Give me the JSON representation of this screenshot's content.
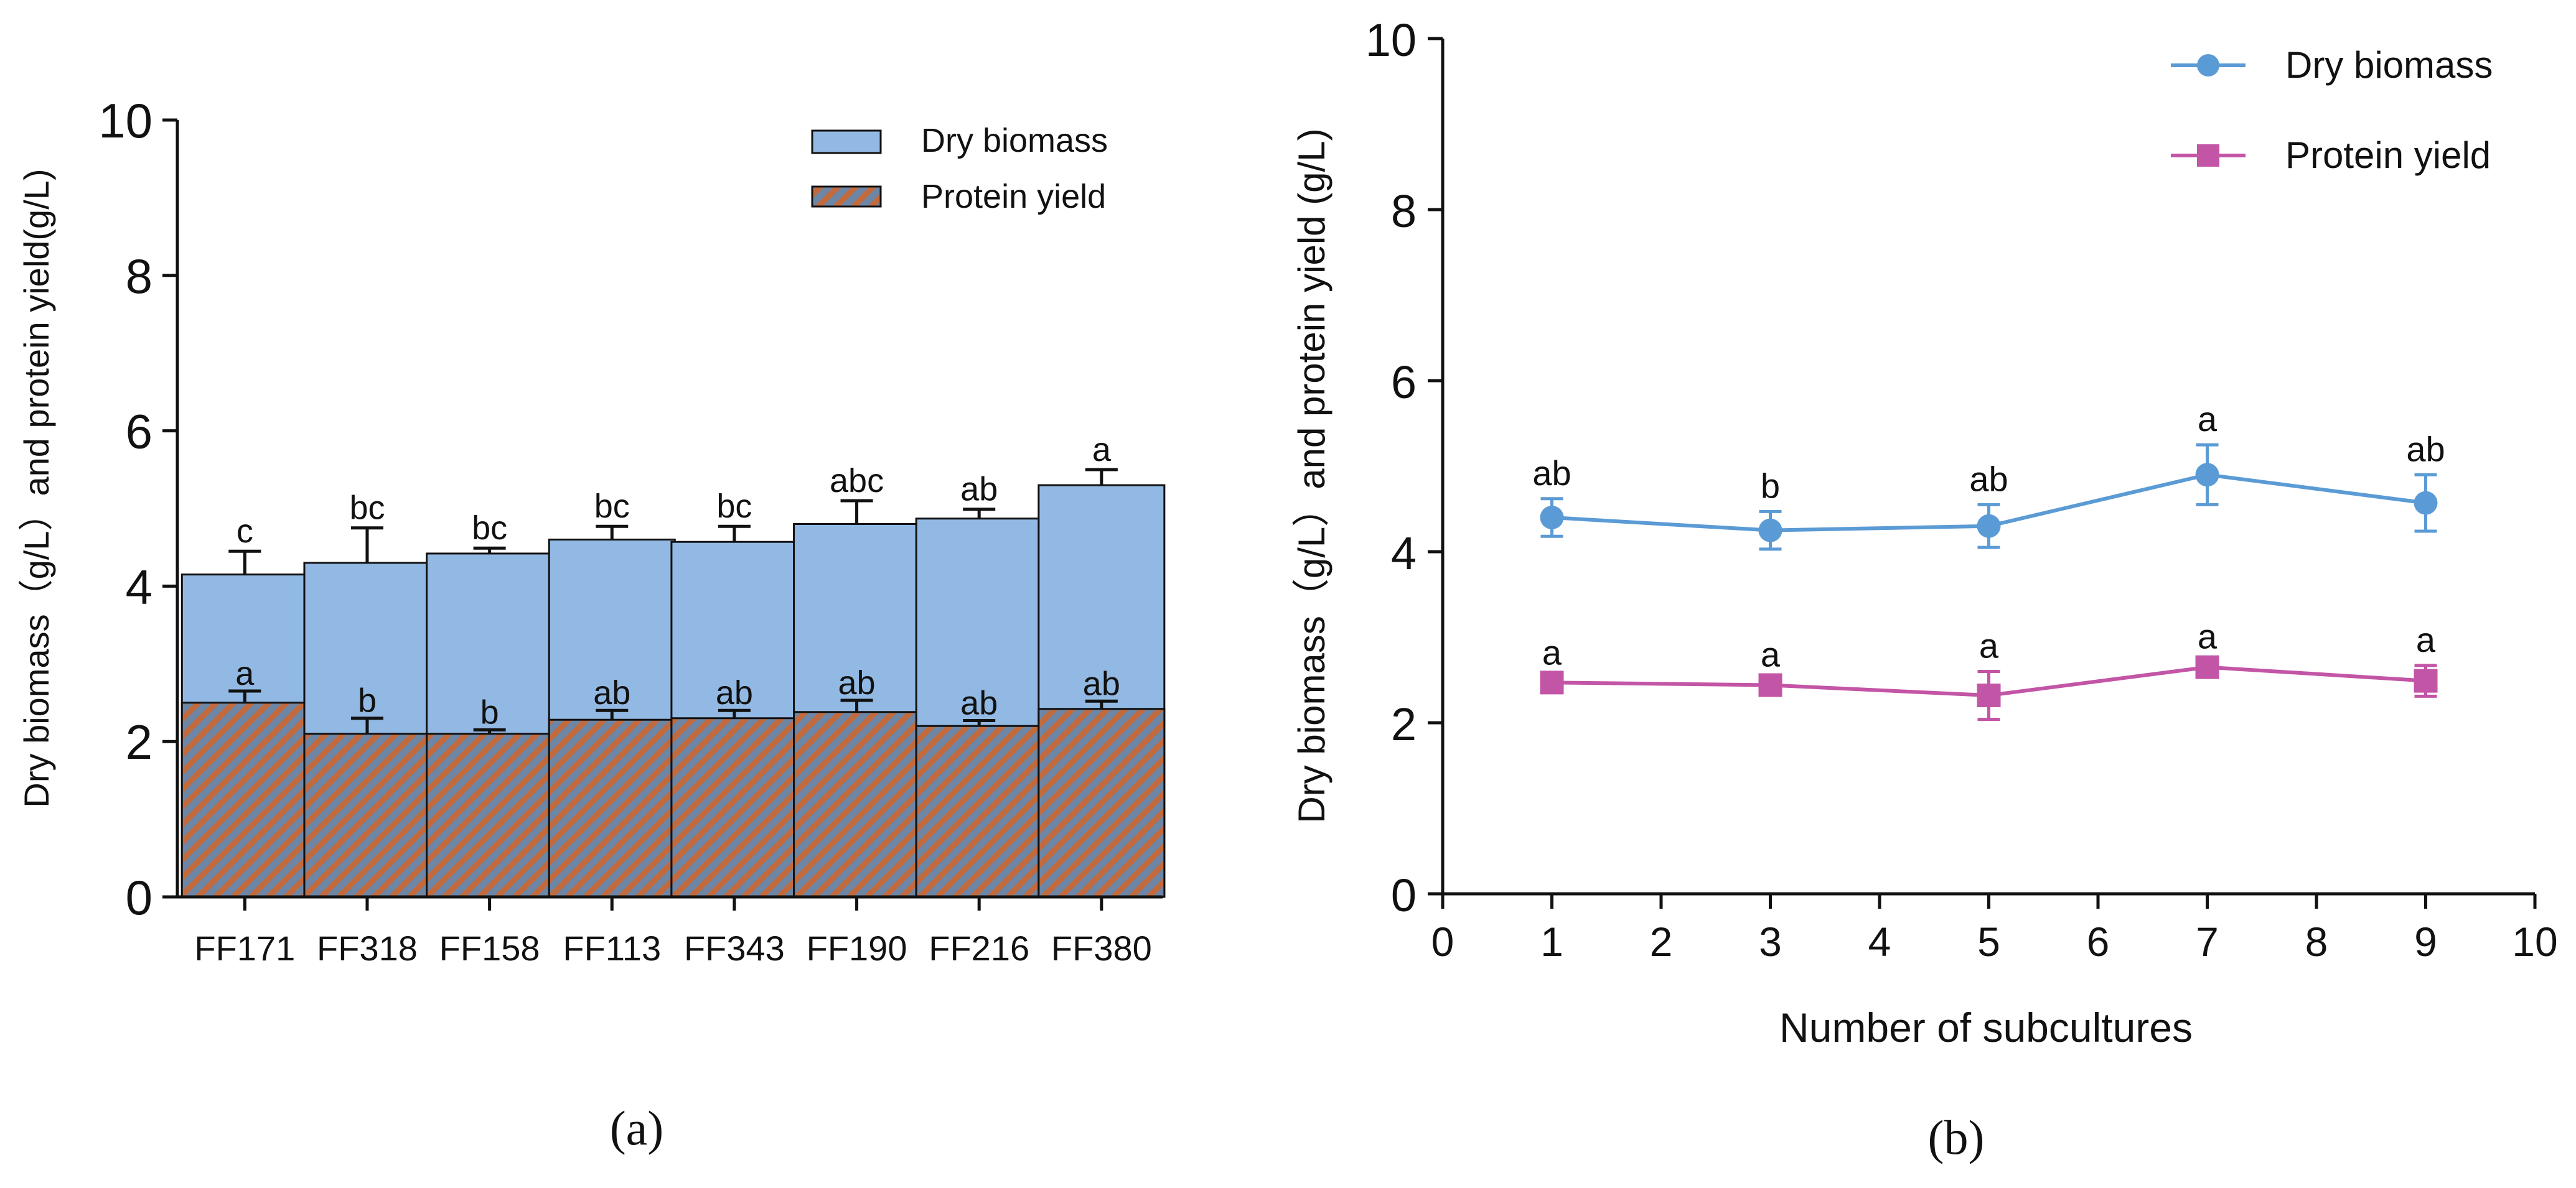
{
  "colors": {
    "biomass_fill": "#92b9e3",
    "hatch_bg": "#6e86a6",
    "hatch_line": "#c26a3c",
    "dry_biomass_line": "#5b9bd5",
    "protein_line": "#c355a6",
    "axis": "#111111"
  },
  "chart_data": [
    {
      "type": "bar",
      "panel_label": "(a)",
      "categories": [
        "FF171",
        "FF318",
        "FF158",
        "FF113",
        "FF343",
        "FF190",
        "FF216",
        "FF380"
      ],
      "ylabel": "Dry biomass（g/L）and protein yield(g/L)",
      "xlabel": "",
      "ylim": [
        0,
        10
      ],
      "yticks": [
        "0",
        "2",
        "4",
        "6",
        "8",
        "10"
      ],
      "legend_position": "top-right",
      "series": [
        {
          "name": "Dry biomass",
          "values": [
            4.15,
            4.3,
            4.42,
            4.6,
            4.57,
            4.8,
            4.87,
            5.3
          ],
          "errors": [
            0.3,
            0.45,
            0.07,
            0.17,
            0.2,
            0.3,
            0.12,
            0.2
          ],
          "letters": [
            "c",
            "bc",
            "bc",
            "bc",
            "bc",
            "abc",
            "ab",
            "a"
          ]
        },
        {
          "name": "Protein yield",
          "values": [
            2.5,
            2.1,
            2.1,
            2.28,
            2.3,
            2.38,
            2.2,
            2.42
          ],
          "errors": [
            0.15,
            0.2,
            0.05,
            0.12,
            0.1,
            0.15,
            0.07,
            0.1
          ],
          "letters": [
            "a",
            "b",
            "b",
            "ab",
            "ab",
            "ab",
            "ab",
            "ab"
          ]
        }
      ]
    },
    {
      "type": "line",
      "panel_label": "(b)",
      "x": [
        1,
        3,
        5,
        7,
        9
      ],
      "xlabel": "Number of subcultures",
      "ylabel": "Dry biomass（g/L）and protein yield (g/L)",
      "xlim": [
        0,
        10
      ],
      "ylim": [
        0,
        10
      ],
      "xticks": [
        "0",
        "1",
        "2",
        "3",
        "4",
        "5",
        "6",
        "7",
        "8",
        "9",
        "10"
      ],
      "yticks": [
        "0",
        "2",
        "4",
        "6",
        "8",
        "10"
      ],
      "legend_position": "top-right",
      "series": [
        {
          "name": "Dry biomass",
          "marker": "circle",
          "values": [
            4.4,
            4.25,
            4.3,
            4.9,
            4.57
          ],
          "errors": [
            0.22,
            0.22,
            0.25,
            0.35,
            0.33
          ],
          "letters": [
            "ab",
            "b",
            "ab",
            "a",
            "ab"
          ]
        },
        {
          "name": "Protein yield",
          "marker": "square",
          "values": [
            2.47,
            2.44,
            2.32,
            2.65,
            2.49
          ],
          "errors": [
            0.05,
            0.06,
            0.28,
            0.06,
            0.18
          ],
          "letters": [
            "a",
            "a",
            "a",
            "a",
            "a"
          ]
        }
      ]
    }
  ]
}
